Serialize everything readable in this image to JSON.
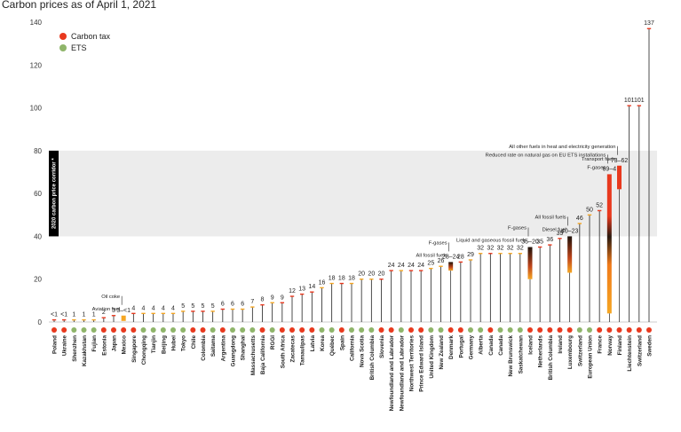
{
  "colors": {
    "carbon_tax": "#e8391e",
    "ets": "#8fb56a",
    "bar_orange": "#f5a623",
    "bar_red": "#e8391e",
    "bar_dark": "#2a1a10",
    "corridor_fill": "#ececec",
    "corridor_band": "#000000"
  },
  "chart_data": {
    "type": "bar",
    "title": "Carbon prices as of April 1, 2021",
    "ylim": [
      0,
      140
    ],
    "yticks": [
      0,
      20,
      40,
      60,
      80,
      100,
      120,
      140
    ],
    "grid": false,
    "legend": {
      "placement": "top-left",
      "entries": [
        {
          "name": "Carbon tax",
          "color": "#e8391e"
        },
        {
          "name": "ETS",
          "color": "#8fb56a"
        }
      ]
    },
    "corridor": {
      "label": "2020 carbon price corridor *",
      "range": [
        40,
        80
      ]
    },
    "categories": [
      {
        "name": "Poland",
        "type": "tax",
        "label": "<1",
        "low": 0,
        "high": 1
      },
      {
        "name": "Ukraine",
        "type": "tax",
        "label": "<1",
        "low": 0,
        "high": 1
      },
      {
        "name": "Shenzhen",
        "type": "ets",
        "label": "1",
        "low": 0,
        "high": 1
      },
      {
        "name": "Kazakhstan",
        "type": "ets",
        "label": "1",
        "low": 0,
        "high": 1
      },
      {
        "name": "Fujian",
        "type": "ets",
        "label": "1",
        "low": 0,
        "high": 1
      },
      {
        "name": "Estonia",
        "type": "tax",
        "label": "2",
        "low": 0,
        "high": 2
      },
      {
        "name": "Japan",
        "type": "tax",
        "label": "3",
        "low": 0,
        "high": 3
      },
      {
        "name": "Mexico",
        "type": "tax",
        "label": "3–<1",
        "low": 0.5,
        "high": 3,
        "range": true
      },
      {
        "name": "Singapore",
        "type": "tax",
        "label": "4",
        "low": 0,
        "high": 4
      },
      {
        "name": "Chongqing",
        "type": "ets",
        "label": "4",
        "low": 0,
        "high": 4
      },
      {
        "name": "Tianjin",
        "type": "ets",
        "label": "4",
        "low": 0,
        "high": 4
      },
      {
        "name": "Beijing",
        "type": "ets",
        "label": "4",
        "low": 0,
        "high": 4
      },
      {
        "name": "Hubei",
        "type": "ets",
        "label": "4",
        "low": 0,
        "high": 4
      },
      {
        "name": "Tokyo",
        "type": "ets",
        "label": "5",
        "low": 0,
        "high": 5
      },
      {
        "name": "Chile",
        "type": "tax",
        "label": "5",
        "low": 0,
        "high": 5
      },
      {
        "name": "Colombia",
        "type": "tax",
        "label": "5",
        "low": 0,
        "high": 5
      },
      {
        "name": "Saitama",
        "type": "ets",
        "label": "5",
        "low": 0,
        "high": 5
      },
      {
        "name": "Argentina",
        "type": "tax",
        "label": "6",
        "low": 0,
        "high": 6
      },
      {
        "name": "Guangdong",
        "type": "ets",
        "label": "6",
        "low": 0,
        "high": 6
      },
      {
        "name": "Shanghai",
        "type": "ets",
        "label": "6",
        "low": 0,
        "high": 6
      },
      {
        "name": "Massachusetts",
        "type": "ets",
        "label": "7",
        "low": 0,
        "high": 7
      },
      {
        "name": "Baja California",
        "type": "tax",
        "label": "8",
        "low": 0,
        "high": 8
      },
      {
        "name": "RGGI",
        "type": "ets",
        "label": "9",
        "low": 0,
        "high": 9
      },
      {
        "name": "South Africa",
        "type": "tax",
        "label": "9",
        "low": 0,
        "high": 9
      },
      {
        "name": "Zacatecas",
        "type": "tax",
        "label": "12",
        "low": 0,
        "high": 12
      },
      {
        "name": "Tamaulipas",
        "type": "tax",
        "label": "13",
        "low": 0,
        "high": 13
      },
      {
        "name": "Latvia",
        "type": "tax",
        "label": "14",
        "low": 0,
        "high": 14
      },
      {
        "name": "Korea",
        "type": "ets",
        "label": "16",
        "low": 0,
        "high": 16
      },
      {
        "name": "Québec",
        "type": "ets",
        "label": "18",
        "low": 0,
        "high": 18
      },
      {
        "name": "Spain",
        "type": "tax",
        "label": "18",
        "low": 0,
        "high": 18
      },
      {
        "name": "California",
        "type": "ets",
        "label": "18",
        "low": 0,
        "high": 18
      },
      {
        "name": "Nova Scotia",
        "type": "ets",
        "label": "20",
        "low": 0,
        "high": 20
      },
      {
        "name": "British Columbia",
        "type": "ets",
        "label": "20",
        "low": 0,
        "high": 20
      },
      {
        "name": "Slovenia",
        "type": "tax",
        "label": "20",
        "low": 0,
        "high": 20
      },
      {
        "name": "Newfoundland and Labrador",
        "type": "tax",
        "label": "24",
        "low": 0,
        "high": 24
      },
      {
        "name": "Newfoundland and Labrador",
        "type": "ets",
        "label": "24",
        "low": 0,
        "high": 24
      },
      {
        "name": "Northwest Territories",
        "type": "tax",
        "label": "24",
        "low": 0,
        "high": 24
      },
      {
        "name": "Prince Edward Island",
        "type": "tax",
        "label": "24",
        "low": 0,
        "high": 24
      },
      {
        "name": "United Kingdom",
        "type": "ets",
        "label": "25",
        "low": 0,
        "high": 25
      },
      {
        "name": "New Zealand",
        "type": "ets",
        "label": "26",
        "low": 0,
        "high": 26
      },
      {
        "name": "Denmark",
        "type": "tax",
        "label": "28–24",
        "low": 24,
        "high": 28,
        "range": true
      },
      {
        "name": "Portugal",
        "type": "tax",
        "label": "28",
        "low": 0,
        "high": 28
      },
      {
        "name": "Germany",
        "type": "ets",
        "label": "29",
        "low": 0,
        "high": 29
      },
      {
        "name": "Alberta",
        "type": "ets",
        "label": "32",
        "low": 0,
        "high": 32
      },
      {
        "name": "Canada",
        "type": "tax",
        "label": "32",
        "low": 0,
        "high": 32
      },
      {
        "name": "Canada",
        "type": "ets",
        "label": "32",
        "low": 0,
        "high": 32
      },
      {
        "name": "New Brunswick",
        "type": "ets",
        "label": "32",
        "low": 0,
        "high": 32
      },
      {
        "name": "Saskatchewan",
        "type": "ets",
        "label": "32",
        "low": 0,
        "high": 32
      },
      {
        "name": "Iceland",
        "type": "tax",
        "label": "35–20",
        "low": 20,
        "high": 35,
        "range": true
      },
      {
        "name": "Netherlands",
        "type": "tax",
        "label": "35",
        "low": 0,
        "high": 35
      },
      {
        "name": "British Columbia",
        "type": "tax",
        "label": "36",
        "low": 0,
        "high": 36
      },
      {
        "name": "Ireland",
        "type": "tax",
        "label": "39",
        "low": 0,
        "high": 39
      },
      {
        "name": "Luxembourg",
        "type": "tax",
        "label": "40–23",
        "low": 23,
        "high": 40,
        "range": true
      },
      {
        "name": "Switzerland",
        "type": "ets",
        "label": "46",
        "low": 0,
        "high": 46
      },
      {
        "name": "European Union",
        "type": "ets",
        "label": "50",
        "low": 0,
        "high": 50
      },
      {
        "name": "France",
        "type": "tax",
        "label": "52",
        "low": 0,
        "high": 52
      },
      {
        "name": "Norway",
        "type": "tax",
        "label": "69–4",
        "low": 4,
        "high": 69,
        "range": true
      },
      {
        "name": "Finland",
        "type": "tax",
        "label": "73–62",
        "low": 62,
        "high": 73,
        "range": true
      },
      {
        "name": "Liechtenstein",
        "type": "tax",
        "label": "101",
        "low": 0,
        "high": 101
      },
      {
        "name": "Switzerland",
        "type": "tax",
        "label": "101",
        "low": 0,
        "high": 101
      },
      {
        "name": "Sweden",
        "type": "tax",
        "label": "137",
        "low": 0,
        "high": 137
      }
    ],
    "annotations": [
      {
        "target": "Mexico",
        "lines": [
          "Oil coke",
          "Aviation fuel"
        ]
      },
      {
        "target": "Denmark",
        "lines": [
          "F-gases",
          "All fossil fuels"
        ]
      },
      {
        "target": "Iceland",
        "lines": [
          "F-gases",
          "Liquid and gaseous fossil fuels"
        ]
      },
      {
        "target": "Luxembourg",
        "lines": [
          "All fossil fuels",
          "Diesel fuel"
        ]
      },
      {
        "target": "Norway",
        "lines": [
          "Reduced rate on natural gas on EU ETS installations",
          "F-gases"
        ]
      },
      {
        "target": "Finland",
        "lines": [
          "All other fuels in heat and electricity generation",
          "Transport fuels"
        ]
      }
    ]
  }
}
